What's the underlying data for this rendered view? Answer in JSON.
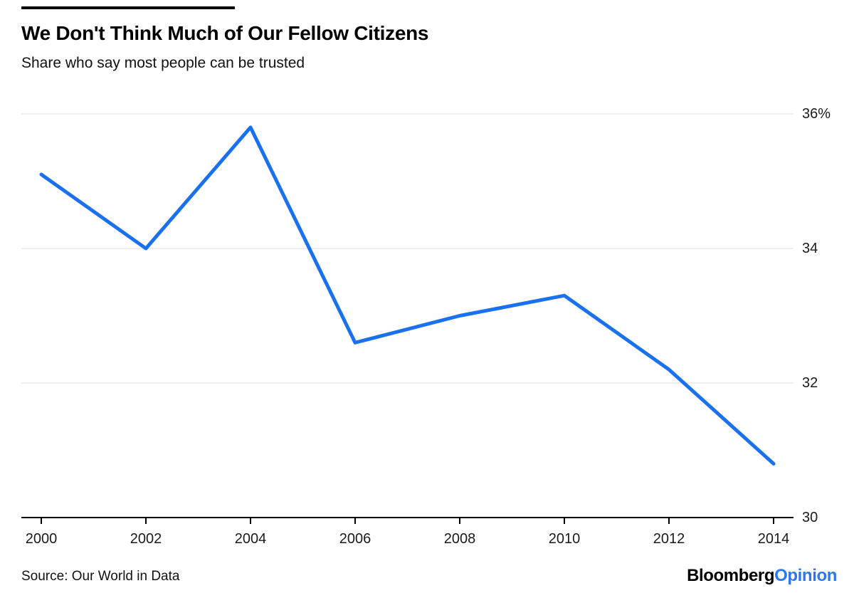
{
  "header": {
    "title": "We Don't Think Much of Our Fellow Citizens",
    "subtitle": "Share who say most people can be trusted"
  },
  "footer": {
    "source": "Source: Our World in Data",
    "logo": {
      "black": "Bloomberg",
      "accent": "Opinion"
    }
  },
  "colors": {
    "line": "#1a71f0",
    "logo_accent": "#2b77f0",
    "grid": "#e9e9e9",
    "axis": "#000000",
    "tick_text": "#1a1a1a"
  },
  "chart_data": {
    "type": "line",
    "title": "We Don't Think Much of Our Fellow Citizens",
    "subtitle": "Share who say most people can be trusted",
    "x": [
      2000,
      2002,
      2004,
      2006,
      2008,
      2010,
      2012,
      2014
    ],
    "series": [
      {
        "name": "Share who say most people can be trusted",
        "values": [
          35.1,
          34.0,
          35.8,
          32.6,
          33.0,
          33.3,
          32.2,
          30.8
        ]
      }
    ],
    "xlabel": "",
    "ylabel": "",
    "ylim": [
      30,
      36
    ],
    "yticks": [
      30,
      32,
      34,
      36
    ],
    "ytick_labels": [
      "30",
      "32",
      "34",
      "36%"
    ],
    "xtick_labels": [
      "2000",
      "2002",
      "2004",
      "2006",
      "2008",
      "2010",
      "2012",
      "2014"
    ],
    "grid": "horizontal",
    "y_axis_side": "right",
    "legend": "none",
    "source": "Source: Our World in Data"
  }
}
